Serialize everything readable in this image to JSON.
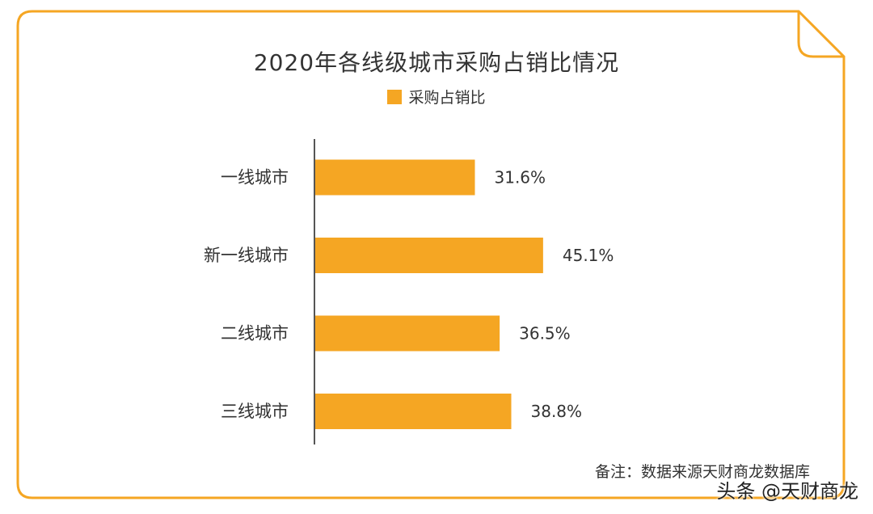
{
  "colors": {
    "frame": "#F5A623",
    "bar": "#F5A623",
    "axis": "#555555",
    "text": "#333333"
  },
  "chart_data": {
    "type": "bar",
    "orientation": "horizontal",
    "title": "2020年各线级城市采购占销比情况",
    "categories": [
      "一线城市",
      "新一线城市",
      "二线城市",
      "三线城市"
    ],
    "series": [
      {
        "name": "采购占销比",
        "values": [
          31.6,
          45.1,
          36.5,
          38.8
        ]
      }
    ],
    "value_labels": [
      "31.6%",
      "45.1%",
      "36.5%",
      "38.8%"
    ],
    "xlim": [
      0,
      100
    ],
    "grid": false,
    "legend": "top-center"
  },
  "note": "备注：数据来源天财商龙数据库",
  "watermark": "头条 @天财商龙"
}
